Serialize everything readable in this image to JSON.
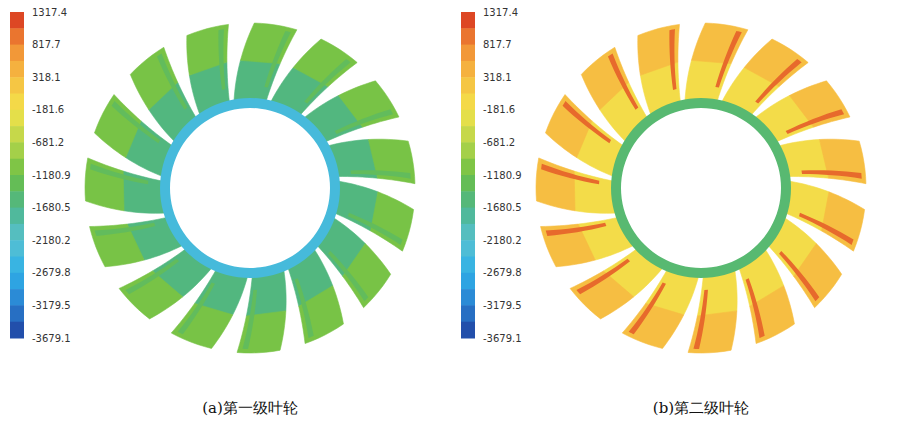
{
  "chart_data": [
    {
      "type": "contour",
      "title": "(a)第一级叶轮",
      "blades": 15,
      "hub_value": -2400,
      "root_value": -1600,
      "tip_value": -1100,
      "edge_value": -1350,
      "colorbar": {
        "range": [
          -3679.1,
          1317.4
        ],
        "ticks": [
          1317.4,
          817.7,
          318.1,
          -181.6,
          -681.2,
          -1180.9,
          -1680.5,
          -2180.2,
          -2679.8,
          -3179.5,
          -3679.1
        ],
        "colors": [
          "#d7301f",
          "#f08c34",
          "#f6bd42",
          "#f3e24a",
          "#b7d54a",
          "#6cbf45",
          "#4db68a",
          "#58c1d0",
          "#2fb0e8",
          "#2a7fd0",
          "#1f3f9e"
        ]
      }
    },
    {
      "type": "contour",
      "title": "(b)第二级叶轮",
      "blades": 15,
      "hub_value": -1500,
      "root_value": -100,
      "tip_value": 300,
      "edge_value": 1000,
      "colorbar": {
        "range": [
          -3679.1,
          1317.4
        ],
        "ticks": [
          1317.4,
          817.7,
          318.1,
          -181.6,
          -681.2,
          -1180.9,
          -1680.5,
          -2180.2,
          -2679.8,
          -3179.5,
          -3679.1
        ],
        "colors": [
          "#d7301f",
          "#f08c34",
          "#f6bd42",
          "#f3e24a",
          "#b7d54a",
          "#6cbf45",
          "#4db68a",
          "#58c1d0",
          "#2fb0e8",
          "#2a7fd0",
          "#1f3f9e"
        ]
      }
    }
  ]
}
